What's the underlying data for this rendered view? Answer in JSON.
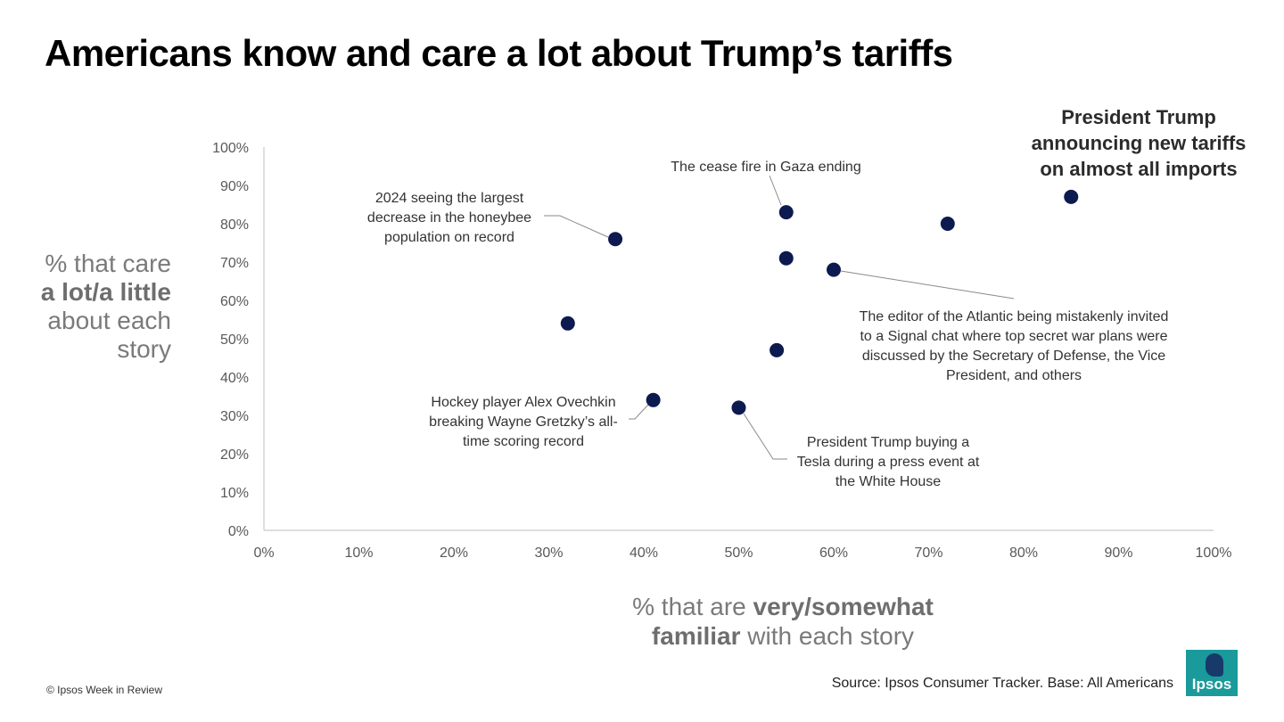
{
  "title": "Americans know and care a lot about Trump’s tariffs",
  "y_axis_label": {
    "pre": "% that care",
    "bold": "a lot/a little",
    "post1": "about each",
    "post2": "story"
  },
  "x_axis_label": {
    "pre": "% that are ",
    "bold1": "very/somewhat",
    "bold2": "familiar",
    "post": " with each story"
  },
  "copyright": "© Ipsos Week in Review",
  "source": "Source: Ipsos Consumer Tracker. Base: All Americans",
  "logo": {
    "text": "Ipsos"
  },
  "colors": {
    "point": "#0d1a4f",
    "axis": "#c9c9c9",
    "label": "#333333",
    "leader": "#8a8a8a",
    "logo_bg": "#1a9a9a"
  },
  "chart_data": {
    "type": "scatter",
    "xlabel": "% that are very/somewhat familiar with each story",
    "ylabel": "% that care a lot/a little about each story",
    "xlim": [
      0,
      100
    ],
    "ylim": [
      0,
      100
    ],
    "x_ticks": [
      "0%",
      "10%",
      "20%",
      "30%",
      "40%",
      "50%",
      "60%",
      "70%",
      "80%",
      "90%",
      "100%"
    ],
    "y_ticks": [
      "0%",
      "10%",
      "20%",
      "30%",
      "40%",
      "50%",
      "60%",
      "70%",
      "80%",
      "90%",
      "100%"
    ],
    "grid": false,
    "points": [
      {
        "x": 85,
        "y": 87,
        "label": "President Trump announcing new tariffs on almost all imports",
        "label_lines": [
          "President Trump",
          "announcing new tariffs",
          "on almost all imports"
        ],
        "bold": true,
        "leader": false
      },
      {
        "x": 55,
        "y": 83,
        "label": "The cease fire in Gaza ending",
        "label_lines": [
          "The cease fire in Gaza ending"
        ],
        "leader": true
      },
      {
        "x": 37,
        "y": 76,
        "label": "2024 seeing the largest decrease in the honeybee population on record",
        "label_lines": [
          "2024 seeing the largest",
          "decrease in the honeybee",
          "population on record"
        ],
        "leader": true
      },
      {
        "x": 60,
        "y": 68,
        "label": "The editor of the Atlantic being mistakenly invited to a Signal chat where top secret war plans were discussed by the Secretary of Defense, the Vice President, and others",
        "label_lines": [
          "The editor of the Atlantic being mistakenly invited",
          "to a Signal chat where top secret war plans were",
          "discussed by the Secretary of Defense, the Vice",
          "President, and others"
        ],
        "leader": true
      },
      {
        "x": 41,
        "y": 34,
        "label": "Hockey player Alex Ovechkin breaking Wayne Gretzky’s all-time scoring record",
        "label_lines": [
          "Hockey player Alex Ovechkin",
          "breaking Wayne Gretzky’s all-",
          "time scoring record"
        ],
        "leader": true
      },
      {
        "x": 50,
        "y": 32,
        "label": "President Trump buying a Tesla during a press event at the White House",
        "label_lines": [
          "President Trump buying a",
          "Tesla during a press event at",
          "the White House"
        ],
        "leader": true
      },
      {
        "x": 72,
        "y": 80
      },
      {
        "x": 55,
        "y": 71
      },
      {
        "x": 32,
        "y": 54
      },
      {
        "x": 54,
        "y": 47
      }
    ]
  }
}
